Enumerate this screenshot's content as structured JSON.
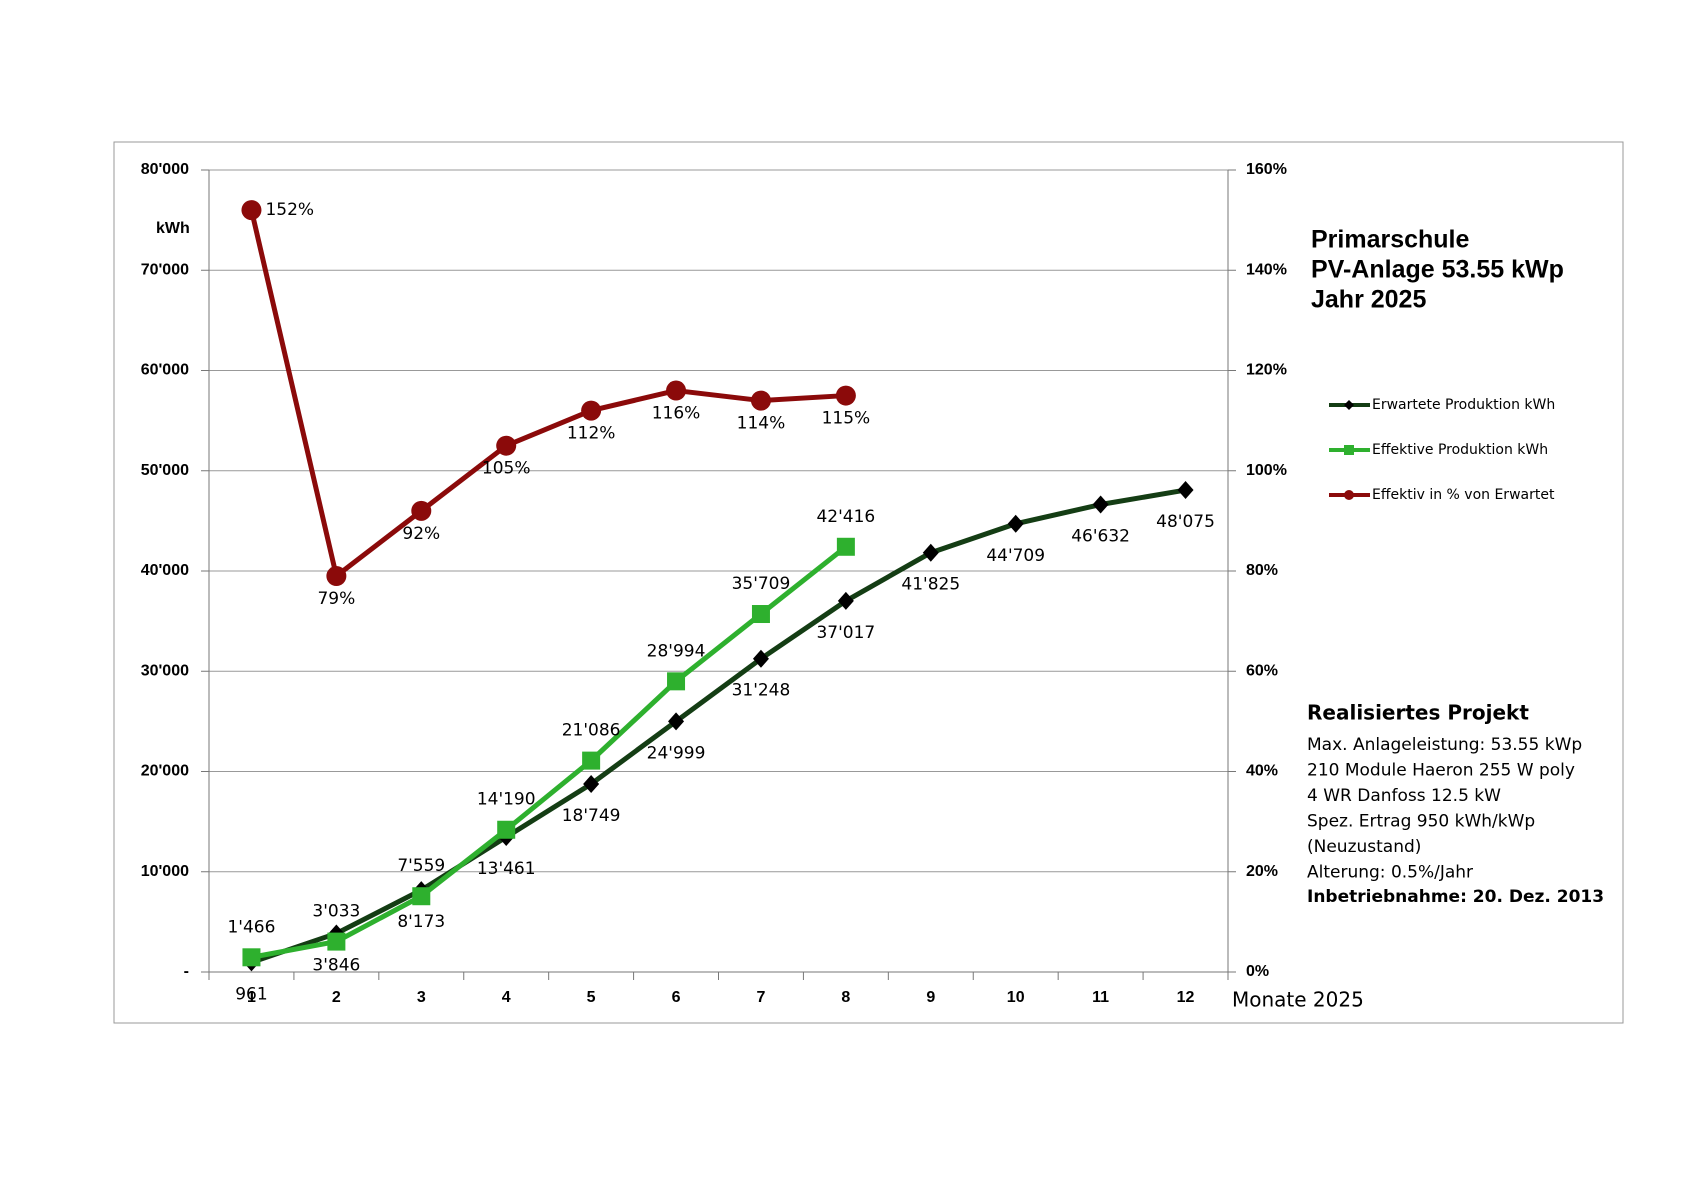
{
  "chart_data": {
    "type": "line",
    "title_lines": [
      "Primarschule",
      "PV-Anlage 53.55 kWp",
      "Jahr 2025"
    ],
    "y_label": "kWh",
    "x_label": "Monate 2025",
    "categories": [
      "1",
      "2",
      "3",
      "4",
      "5",
      "6",
      "7",
      "8",
      "9",
      "10",
      "11",
      "12"
    ],
    "series": [
      {
        "name": "Erwartete Produktion kWh",
        "color": "#143d14",
        "marker_color": "#000000",
        "marker": "diamond",
        "values": [
          961,
          3846,
          8173,
          13461,
          18749,
          24999,
          31248,
          37017,
          41825,
          44709,
          46632,
          48075
        ],
        "value_labels": [
          "961",
          "3'846",
          "8'173",
          "13'461",
          "18'749",
          "24'999",
          "31'248",
          "37'017",
          "41'825",
          "44'709",
          "46'632",
          "48'075"
        ]
      },
      {
        "name": "Effektive Produktion kWh",
        "color": "#2eb02e",
        "marker_color": "#2eb02e",
        "marker": "square",
        "values": [
          1466,
          3033,
          7559,
          14190,
          21086,
          28994,
          35709,
          42416,
          null,
          null,
          null,
          null
        ],
        "value_labels": [
          "1'466",
          "3'033",
          "7'559",
          "14'190",
          "21'086",
          "28'994",
          "35'709",
          "42'416",
          null,
          null,
          null,
          null
        ]
      },
      {
        "name": "Effektiv in % von Erwartet",
        "color": "#8b0a0a",
        "marker_color": "#8b0a0a",
        "marker": "circle",
        "axis": "y2",
        "values": [
          152,
          79,
          92,
          105,
          112,
          116,
          114,
          115,
          null,
          null,
          null,
          null
        ],
        "value_labels": [
          "152%",
          "79%",
          "92%",
          "105%",
          "112%",
          "116%",
          "114%",
          "115%",
          null,
          null,
          null,
          null
        ]
      }
    ],
    "ylim": [
      0,
      80000
    ],
    "yticks": [
      {
        "value": 0,
        "label": "-"
      },
      {
        "value": 10000,
        "label": "10'000"
      },
      {
        "value": 20000,
        "label": "20'000"
      },
      {
        "value": 30000,
        "label": "30'000"
      },
      {
        "value": 40000,
        "label": "40'000"
      },
      {
        "value": 50000,
        "label": "50'000"
      },
      {
        "value": 60000,
        "label": "60'000"
      },
      {
        "value": 70000,
        "label": "70'000"
      },
      {
        "value": 80000,
        "label": "80'000"
      }
    ],
    "y2lim": [
      0,
      160
    ],
    "y2ticks": [
      {
        "value": 0,
        "label": "0%"
      },
      {
        "value": 20,
        "label": "20%"
      },
      {
        "value": 40,
        "label": "40%"
      },
      {
        "value": 60,
        "label": "60%"
      },
      {
        "value": 80,
        "label": "80%"
      },
      {
        "value": 100,
        "label": "100%"
      },
      {
        "value": 120,
        "label": "120%"
      },
      {
        "value": 140,
        "label": "140%"
      },
      {
        "value": 160,
        "label": "160%"
      }
    ],
    "grid": true,
    "legend": "right",
    "info": {
      "heading": "Realisiertes Projekt",
      "lines": [
        "Max. Anlageleistung: 53.55 kWp",
        "210 Module Haeron 255 W poly",
        "4 WR Danfoss 12.5 kW",
        "Spez. Ertrag 950 kWh/kWp",
        "(Neuzustand)",
        "Alterung: 0.5%/Jahr"
      ],
      "footer": "Inbetriebnahme: 20. Dez. 2013"
    }
  }
}
